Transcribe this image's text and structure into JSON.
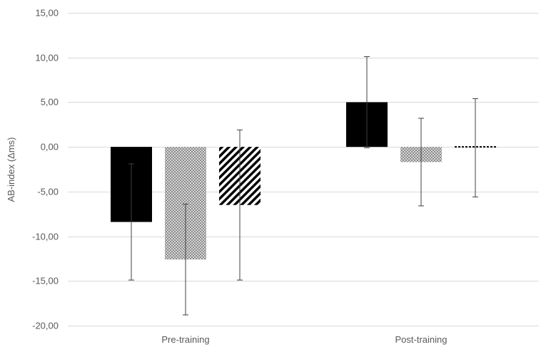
{
  "chart_data": {
    "type": "bar",
    "title": "",
    "ylabel": "AB-index (Δms)",
    "xlabel": "",
    "categories": [
      "Pre-training",
      "Post-training"
    ],
    "ylim": [
      -20,
      15
    ],
    "ytick_step": 5,
    "ytick_labels": [
      "-20,00",
      "-15,00",
      "-10,00",
      "-5,00",
      "0,00",
      "5,00",
      "10,00",
      "15,00"
    ],
    "grid": true,
    "legend": "none",
    "series": [
      {
        "pattern": "solid-black",
        "values": [
          -8.4,
          5.0
        ],
        "error": [
          6.5,
          5.1
        ]
      },
      {
        "pattern": "gray-checker",
        "values": [
          -12.6,
          -1.7
        ],
        "error": [
          6.2,
          4.9
        ]
      },
      {
        "pattern": "diagonal-stripes",
        "values": [
          -6.5,
          -0.1
        ],
        "error": [
          8.4,
          5.5
        ]
      }
    ]
  }
}
